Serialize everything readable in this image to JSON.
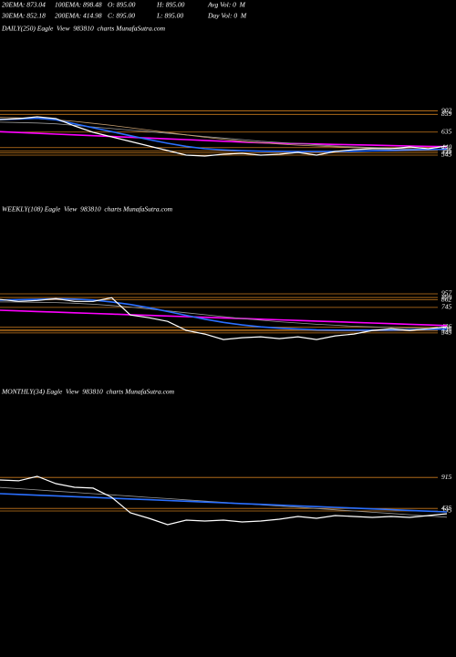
{
  "header": [
    [
      "20EMA: 873.04",
      "100EMA: 898.48",
      "O: 895.00",
      "H: 895.00",
      "Avg Vol: 0  M"
    ],
    [
      "30EMA: 852.18",
      "200EMA: 414.98",
      "C: 895.00",
      "L: 895.00",
      "Day Vol: 0  M"
    ]
  ],
  "chart_data": [
    {
      "type": "line",
      "title": "DAILY(250) Eagle  View  983810  charts MunafaSutra.com",
      "ylim": [
        0,
        1150
      ],
      "yticks": [
        902,
        859,
        635,
        440,
        395,
        375,
        345
      ],
      "level_color": "#c87a1e",
      "series": [
        {
          "color": "#ff00ff",
          "values": [
            640,
            630,
            620,
            610,
            600,
            590,
            580,
            570,
            560,
            550,
            540,
            530,
            520,
            510,
            500,
            495,
            490,
            485,
            480,
            475,
            470,
            465,
            460,
            455,
            452
          ]
        },
        {
          "color": "#999999",
          "values": [
            760,
            755,
            750,
            740,
            720,
            700,
            680,
            660,
            640,
            620,
            600,
            580,
            560,
            540,
            520,
            505,
            490,
            475,
            460,
            450,
            440,
            432,
            425,
            420,
            415
          ]
        },
        {
          "color": "#c8a070",
          "values": [
            820,
            815,
            805,
            790,
            770,
            745,
            720,
            690,
            660,
            630,
            600,
            570,
            545,
            520,
            500,
            485,
            470,
            460,
            450,
            440,
            432,
            425,
            420,
            415,
            410
          ]
        },
        {
          "color": "#2a6fff",
          "values": [
            795,
            800,
            810,
            790,
            740,
            690,
            640,
            590,
            540,
            495,
            455,
            425,
            410,
            400,
            395,
            392,
            390,
            390,
            392,
            395,
            400,
            405,
            410,
            415,
            420
          ]
        },
        {
          "color": "#ffffff",
          "values": [
            793,
            805,
            828,
            805,
            713,
            632,
            575,
            517,
            460,
            402,
            345,
            333,
            356,
            368,
            345,
            356,
            379,
            345,
            391,
            414,
            425,
            425,
            448,
            425,
            460
          ]
        }
      ]
    },
    {
      "type": "line",
      "title": "WEEKLY(108) Eagle  View  983810  charts MunafaSutra.com",
      "ylim": [
        0,
        1300
      ],
      "yticks": [
        957,
        899,
        862,
        745,
        436,
        395,
        375,
        345
      ],
      "level_color": "#c87a1e",
      "series": [
        {
          "color": "#ff00ff",
          "values": [
            700,
            690,
            680,
            670,
            660,
            650,
            640,
            630,
            620,
            610,
            600,
            590,
            580,
            570,
            560,
            550,
            540,
            530,
            520,
            510,
            500,
            490,
            480,
            470,
            460
          ]
        },
        {
          "color": "#999999",
          "values": [
            830,
            828,
            825,
            820,
            810,
            795,
            775,
            750,
            720,
            690,
            660,
            630,
            600,
            570,
            545,
            520,
            500,
            480,
            465,
            450,
            440,
            430,
            422,
            415,
            410
          ]
        },
        {
          "color": "#2a6fff",
          "values": [
            860,
            865,
            870,
            880,
            875,
            860,
            830,
            790,
            740,
            680,
            620,
            560,
            510,
            470,
            440,
            420,
            405,
            395,
            390,
            388,
            388,
            390,
            395,
            400,
            405
          ]
        },
        {
          "color": "#ffffff",
          "values": [
            868,
            839,
            853,
            882,
            839,
            839,
            896,
            626,
            583,
            526,
            384,
            327,
            242,
            270,
            284,
            256,
            284,
            242,
            299,
            327,
            384,
            412,
            384,
            412,
            441
          ]
        }
      ]
    },
    {
      "type": "line",
      "title": "MONTHLY(34) Eagle  View  983810  charts MunafaSutra.com",
      "ylim": [
        0,
        1200
      ],
      "yticks": [
        915,
        435,
        395
      ],
      "level_color": "#c87a1e",
      "series": [
        {
          "color": "#999999",
          "values": [
            760,
            741,
            722,
            702,
            683,
            664,
            645,
            626,
            606,
            587,
            568,
            549,
            530,
            510,
            491,
            472,
            453,
            434,
            414,
            395,
            376,
            357,
            338,
            318,
            299
          ]
        },
        {
          "color": "#2a6fff",
          "values": [
            664,
            652,
            640,
            629,
            617,
            605,
            593,
            581,
            570,
            558,
            546,
            534,
            522,
            510,
            499,
            487,
            475,
            463,
            452,
            440,
            428,
            416,
            404,
            393,
            381
          ]
        },
        {
          "color": "#ffffff",
          "values": [
            876,
            862,
            932,
            819,
            763,
            749,
            607,
            367,
            282,
            184,
            254,
            240,
            254,
            226,
            240,
            268,
            311,
            282,
            325,
            311,
            297,
            311,
            297,
            325,
            353
          ]
        }
      ]
    }
  ]
}
